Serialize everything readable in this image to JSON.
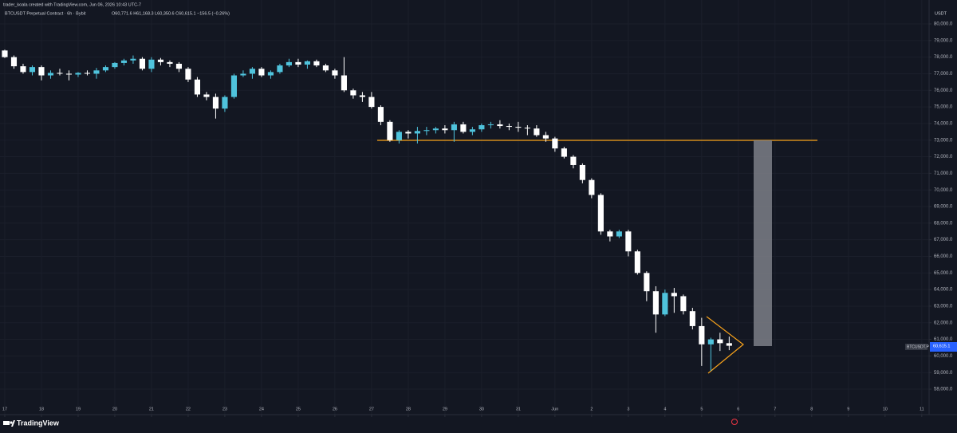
{
  "credit": "trader_koala created with TradingView.com, Jun 06, 2026 10:43 UTC-7",
  "brand": "TradingView",
  "chart_data": {
    "type": "candlestick",
    "title": "BTCUSDT Perpetual Contract · 6h · Bybit",
    "legend_text": "O60,771.6 H61,168.3 L60,350.6 C60,615.1 −156.5 (−0.26%)",
    "currency": "USDT",
    "symbol_label": "BTCUSDT.P",
    "last_label": "60,615.1",
    "up_color": "#4fc3dc",
    "down_color": "#ffffff",
    "x": [
      17,
      17.25,
      17.5,
      17.75,
      18,
      18.25,
      18.5,
      18.75,
      19,
      19.25,
      19.5,
      19.75,
      20,
      20.25,
      20.5,
      20.75,
      21,
      21.25,
      21.5,
      21.75,
      22,
      22.25,
      22.5,
      22.75,
      23,
      23.25,
      23.5,
      23.75,
      24,
      24.25,
      24.5,
      24.75,
      25,
      25.25,
      25.5,
      25.75,
      26,
      26.25,
      26.5,
      26.75,
      27,
      27.25,
      27.5,
      27.75,
      28,
      28.25,
      28.5,
      28.75,
      29,
      29.25,
      29.5,
      29.75,
      30,
      30.25,
      30.5,
      30.75,
      31,
      31.25,
      31.5,
      31.75,
      32,
      32.25,
      32.5,
      32.75,
      33,
      33.25,
      33.5,
      33.75,
      34,
      34.25,
      34.5,
      34.75,
      35,
      35.25,
      35.5,
      35.75,
      36,
      36.25,
      36.5,
      36.75
    ],
    "open": [
      78400,
      78000,
      77450,
      77100,
      77400,
      76900,
      77050,
      77000,
      76950,
      77050,
      77000,
      77200,
      77400,
      77650,
      77800,
      77900,
      77300,
      77850,
      77700,
      77600,
      77300,
      76650,
      75750,
      75600,
      74900,
      75600,
      76900,
      77000,
      77300,
      76900,
      77100,
      77500,
      77700,
      77550,
      77750,
      77500,
      77200,
      76900,
      76000,
      75700,
      75600,
      75000,
      74100,
      73000,
      73500,
      73400,
      73550,
      73600,
      73700,
      73600,
      73950,
      73500,
      73650,
      73900,
      73950,
      73850,
      73800,
      73750,
      73700,
      73300,
      73100,
      72500,
      72000,
      71500,
      70600,
      69700,
      67500,
      67200,
      67500,
      66300,
      65000,
      63900,
      62500,
      63800,
      63600,
      62700,
      61800,
      60700,
      61000,
      60771.6
    ],
    "high": [
      78450,
      78100,
      77600,
      77500,
      77500,
      77200,
      77300,
      77200,
      77100,
      77200,
      77350,
      77500,
      77700,
      77900,
      78100,
      78000,
      78000,
      77950,
      77800,
      77700,
      77400,
      76800,
      75900,
      75800,
      75700,
      77000,
      77200,
      77400,
      77400,
      77200,
      77600,
      77900,
      77900,
      77800,
      77850,
      77600,
      77300,
      78000,
      76100,
      75900,
      75900,
      75100,
      74200,
      73600,
      73600,
      73800,
      73800,
      73800,
      73900,
      74100,
      74100,
      73800,
      74000,
      74100,
      74200,
      74000,
      74100,
      73900,
      73900,
      73500,
      73200,
      72600,
      72100,
      71600,
      70700,
      69800,
      67600,
      67600,
      67600,
      66400,
      65100,
      64200,
      64000,
      64100,
      63700,
      62900,
      62300,
      61100,
      61400,
      61168.3
    ],
    "low": [
      77950,
      77300,
      77000,
      76900,
      76600,
      76700,
      76900,
      76600,
      76800,
      76900,
      76700,
      77100,
      77300,
      77500,
      77600,
      77200,
      77100,
      77500,
      77400,
      77100,
      76500,
      75600,
      75400,
      74300,
      74700,
      75500,
      76800,
      76700,
      76800,
      76700,
      77000,
      77400,
      77400,
      77300,
      77400,
      77100,
      76700,
      75900,
      75500,
      75300,
      74900,
      73900,
      72900,
      72800,
      73100,
      72800,
      73300,
      73400,
      73400,
      72900,
      73400,
      73300,
      73500,
      73700,
      73700,
      73600,
      73500,
      73300,
      73200,
      72900,
      72300,
      71900,
      71300,
      70400,
      69500,
      67300,
      66900,
      67100,
      66000,
      64900,
      63300,
      61400,
      62400,
      62600,
      62500,
      61600,
      59400,
      59100,
      60300,
      60350.6
    ],
    "close": [
      78000,
      77450,
      77100,
      77400,
      76900,
      77050,
      77000,
      76950,
      77050,
      77000,
      77200,
      77400,
      77650,
      77800,
      77900,
      77300,
      77850,
      77700,
      77600,
      77300,
      76650,
      75750,
      75600,
      74900,
      75600,
      76900,
      77000,
      77300,
      76900,
      77100,
      77500,
      77700,
      77550,
      77750,
      77500,
      77200,
      76900,
      76000,
      75700,
      75600,
      75000,
      74100,
      73000,
      73500,
      73400,
      73550,
      73600,
      73700,
      73600,
      73950,
      73500,
      73650,
      73900,
      73950,
      73850,
      73800,
      73750,
      73700,
      73300,
      73100,
      72500,
      72000,
      71500,
      70600,
      69700,
      67500,
      67200,
      67500,
      66300,
      65000,
      63900,
      62500,
      63800,
      63600,
      62700,
      61800,
      60700,
      61000,
      60771.6,
      60615.1
    ],
    "xlim": [
      16.87,
      42.2
    ],
    "ylim": [
      56465,
      81441
    ],
    "xticks": [
      17,
      18,
      19,
      20,
      21,
      22,
      23,
      24,
      25,
      26,
      27,
      28,
      29,
      30,
      31,
      {
        "value": 32,
        "label": "Jun"
      },
      {
        "value": 33,
        "label": "2"
      },
      {
        "value": 34,
        "label": "3"
      },
      {
        "value": 35,
        "label": "4"
      },
      {
        "value": 36,
        "label": "5"
      },
      {
        "value": 37,
        "label": "6"
      },
      {
        "value": 38,
        "label": "7"
      },
      {
        "value": 39,
        "label": "8"
      },
      {
        "value": 40,
        "label": "9"
      },
      {
        "value": 41,
        "label": "10"
      },
      {
        "value": 42,
        "label": "11"
      }
    ],
    "yticks": [
      {
        "value": 58000,
        "label": "58,000.0"
      },
      {
        "value": 59000,
        "label": "59,000.0"
      },
      {
        "value": 60000,
        "label": "60,000.0"
      },
      {
        "value": 61000,
        "label": "61,000.0"
      },
      {
        "value": 62000,
        "label": "62,000.0"
      },
      {
        "value": 63000,
        "label": "63,000.0"
      },
      {
        "value": 64000,
        "label": "64,000.0"
      },
      {
        "value": 65000,
        "label": "65,000.0"
      },
      {
        "value": 66000,
        "label": "66,000.0"
      },
      {
        "value": 67000,
        "label": "67,000.0"
      },
      {
        "value": 68000,
        "label": "68,000.0"
      },
      {
        "value": 69000,
        "label": "69,000.0"
      },
      {
        "value": 70000,
        "label": "70,000.0"
      },
      {
        "value": 71000,
        "label": "71,000.0"
      },
      {
        "value": 72000,
        "label": "72,000.0"
      },
      {
        "value": 73000,
        "label": "73,000.0"
      },
      {
        "value": 74000,
        "label": "74,000.0"
      },
      {
        "value": 75000,
        "label": "75,000.0"
      },
      {
        "value": 76000,
        "label": "76,000.0"
      },
      {
        "value": 77000,
        "label": "77,000.0"
      },
      {
        "value": 78000,
        "label": "78,000.0"
      },
      {
        "value": 79000,
        "label": "79,000.0"
      },
      {
        "value": 80000,
        "label": "80,000.0"
      }
    ]
  }
}
